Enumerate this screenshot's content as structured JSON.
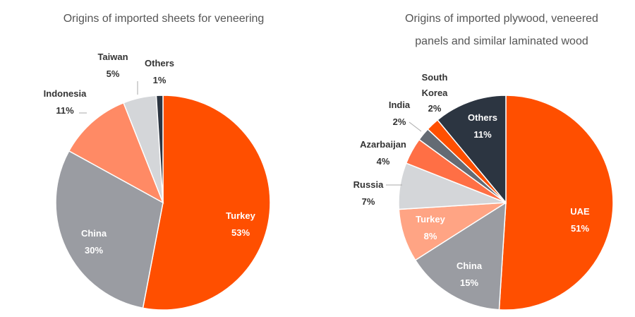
{
  "chart_data": [
    {
      "type": "pie",
      "title": "Origins of imported sheets for veneering",
      "title_lines": [
        "Origins of imported sheets for veneering"
      ],
      "slices": [
        {
          "name": "Turkey",
          "value": 53,
          "label": "53%",
          "color": "#FF4F00"
        },
        {
          "name": "China",
          "value": 30,
          "label": "30%",
          "color": "#9A9CA2"
        },
        {
          "name": "Indonesia",
          "value": 11,
          "label": "11%",
          "color": "#FF8A65"
        },
        {
          "name": "Taiwan",
          "value": 5,
          "label": "5%",
          "color": "#D4D6D9"
        },
        {
          "name": "Others",
          "value": 1,
          "label": "1%",
          "color": "#2C3541"
        }
      ]
    },
    {
      "type": "pie",
      "title": "Origins of imported plywood, veneered panels and similar laminated wood",
      "title_lines": [
        "Origins of imported plywood, veneered",
        "panels and similar laminated wood"
      ],
      "slices": [
        {
          "name": "UAE",
          "value": 51,
          "label": "51%",
          "color": "#FF4F00"
        },
        {
          "name": "China",
          "value": 15,
          "label": "15%",
          "color": "#9A9CA2"
        },
        {
          "name": "Turkey",
          "value": 8,
          "label": "8%",
          "color": "#FFA484"
        },
        {
          "name": "Russia",
          "value": 7,
          "label": "7%",
          "color": "#D4D6D9"
        },
        {
          "name": "Azarbaijan",
          "value": 4,
          "label": "4%",
          "color": "#FF6F45"
        },
        {
          "name": "India",
          "value": 2,
          "label": "2%",
          "color": "#646B74"
        },
        {
          "name": "South Korea",
          "name_lines": [
            "South",
            "Korea"
          ],
          "value": 2,
          "label": "2%",
          "color": "#FF4F00"
        },
        {
          "name": "Others",
          "value": 11,
          "label": "11%",
          "color": "#2C3541"
        }
      ]
    }
  ]
}
